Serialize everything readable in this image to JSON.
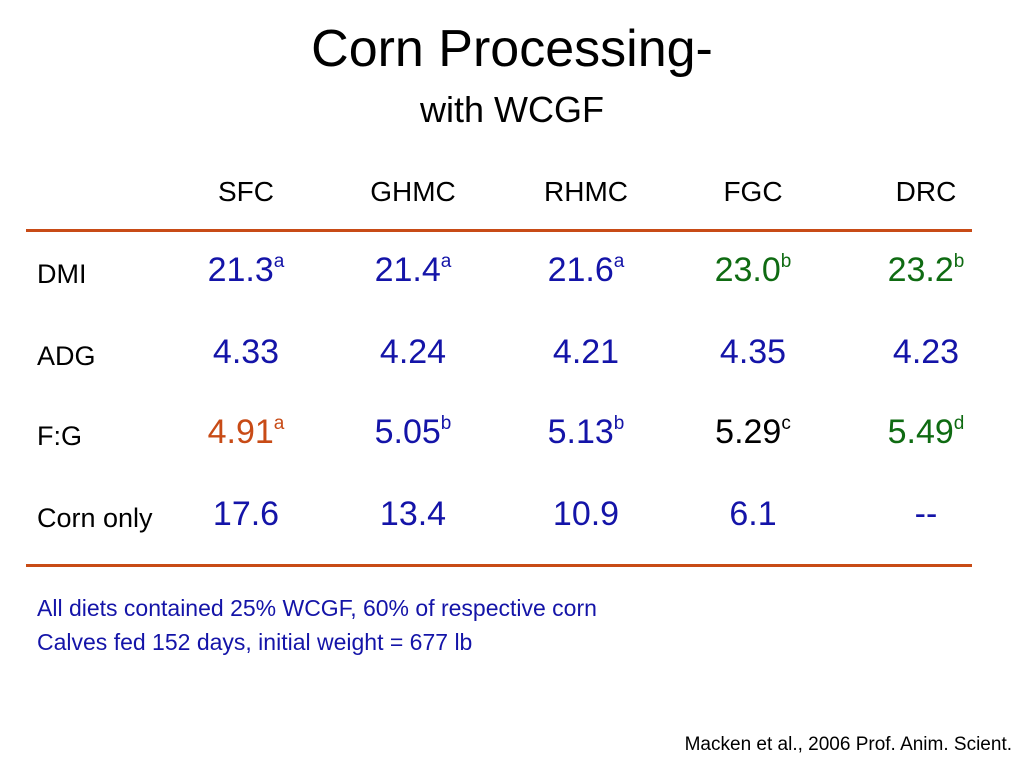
{
  "title": "Corn Processing-",
  "subtitle": "with WCGF",
  "columns": [
    "SFC",
    "GHMC",
    "RHMC",
    "FGC",
    "DRC"
  ],
  "rows": [
    {
      "label": "DMI",
      "cells": [
        {
          "value": "21.3",
          "sup": "a",
          "color": "#1414a8"
        },
        {
          "value": "21.4",
          "sup": "a",
          "color": "#1414a8"
        },
        {
          "value": "21.6",
          "sup": "a",
          "color": "#1414a8"
        },
        {
          "value": "23.0",
          "sup": "b",
          "color": "#0f6b12"
        },
        {
          "value": "23.2",
          "sup": "b",
          "color": "#0f6b12"
        }
      ]
    },
    {
      "label": "ADG",
      "cells": [
        {
          "value": "4.33",
          "sup": "",
          "color": "#1414a8"
        },
        {
          "value": "4.24",
          "sup": "",
          "color": "#1414a8"
        },
        {
          "value": "4.21",
          "sup": "",
          "color": "#1414a8"
        },
        {
          "value": "4.35",
          "sup": "",
          "color": "#1414a8"
        },
        {
          "value": "4.23",
          "sup": "",
          "color": "#1414a8"
        }
      ]
    },
    {
      "label": "F:G",
      "cells": [
        {
          "value": "4.91",
          "sup": "a",
          "color": "#c84b16"
        },
        {
          "value": "5.05",
          "sup": "b",
          "color": "#1414a8"
        },
        {
          "value": "5.13",
          "sup": "b",
          "color": "#1414a8"
        },
        {
          "value": "5.29",
          "sup": "c",
          "color": "#000000"
        },
        {
          "value": "5.49",
          "sup": "d",
          "color": "#0f6b12"
        }
      ]
    },
    {
      "label": "Corn only",
      "cells": [
        {
          "value": "17.6",
          "sup": "",
          "color": "#1414a8"
        },
        {
          "value": "13.4",
          "sup": "",
          "color": "#1414a8"
        },
        {
          "value": "10.9",
          "sup": "",
          "color": "#1414a8"
        },
        {
          "value": "6.1",
          "sup": "",
          "color": "#1414a8"
        },
        {
          "value": "--",
          "sup": "",
          "color": "#1414a8"
        }
      ]
    }
  ],
  "notes": [
    "All diets contained 25% WCGF, 60% of respective corn",
    "Calves fed 152 days, initial weight = 677 lb"
  ],
  "citation": "Macken et al., 2006 Prof. Anim. Scient.",
  "colors": {
    "rule": "#c84b16",
    "blue": "#1414a8",
    "green": "#0f6b12",
    "orange": "#c84b16",
    "black": "#000000"
  }
}
